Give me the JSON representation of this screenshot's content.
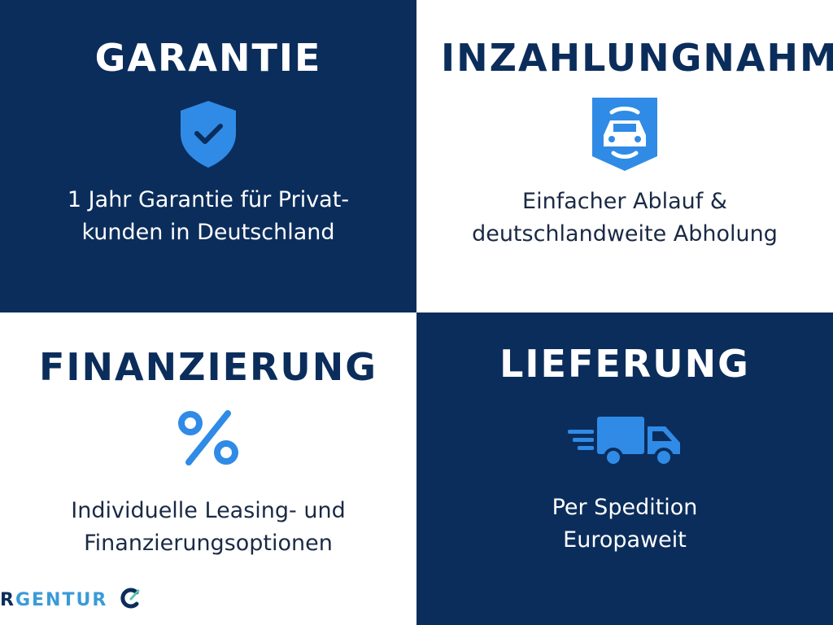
{
  "colors": {
    "navy": "#0b2d5b",
    "accent": "#2f8be6",
    "white": "#ffffff"
  },
  "tiles": [
    {
      "title": "GARANTIE",
      "icon": "shield-check-icon",
      "lines": [
        "1 Jahr Garantie für Privat-",
        "kunden in Deutschland"
      ]
    },
    {
      "title": "INZAHLUNGNAHME",
      "icon": "car-badge-icon",
      "lines": [
        "Einfacher Ablauf &",
        "deutschlandweite Abholung"
      ]
    },
    {
      "title": "FINANZIERUNG",
      "icon": "percent-icon",
      "lines": [
        "Individuelle Leasing- und",
        "Finanzierungsoptionen"
      ]
    },
    {
      "title": "LIEFERUNG",
      "icon": "delivery-truck-icon",
      "lines": [
        "Per Spedition",
        "Europaweit"
      ]
    }
  ],
  "logo": {
    "first": "R",
    "rest": "GENTUR"
  }
}
